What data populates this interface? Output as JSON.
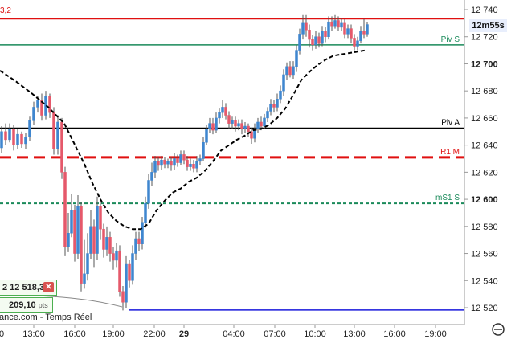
{
  "chart_data": {
    "type": "candlestick",
    "y_ticks": [
      "12 740",
      "12 720",
      "12 700",
      "12 680",
      "12 660",
      "12 640",
      "12 620",
      "12 600",
      "12 580",
      "12 560",
      "12 540",
      "12 520"
    ],
    "y_bold_ticks": [
      "12 700",
      "12 600"
    ],
    "y_values": [
      12740,
      12720,
      12700,
      12680,
      12660,
      12640,
      12620,
      12600,
      12580,
      12560,
      12540,
      12520
    ],
    "ylim": [
      12508,
      12745
    ],
    "x_ticks": [
      "13:00",
      "16:00",
      "19:00",
      "22:00",
      "29",
      "04:00",
      "07:00",
      "10:00",
      "13:00",
      "16:00",
      "19:00"
    ],
    "x_tick_prefix": "0",
    "levels": [
      {
        "name": "",
        "value": 12733.2,
        "color": "#e01010",
        "style": "solid",
        "label": "3,2"
      },
      {
        "name": "Piv S",
        "value": 12714,
        "color": "#1a8a5a",
        "style": "solid"
      },
      {
        "name": "Piv A",
        "value": 12652.5,
        "color": "#000000",
        "style": "solid"
      },
      {
        "name": "R1 M",
        "value": 12631,
        "color": "#e01010",
        "style": "dashed"
      },
      {
        "name": "mS1 S",
        "value": 12597,
        "color": "#1a8a5a",
        "style": "dotted"
      },
      {
        "name": "",
        "value": 12518.3,
        "color": "#1a1adc",
        "style": "solid"
      }
    ]
  },
  "close_value": "2 12 518,3",
  "points_value": "209,10",
  "points_unit": "pts",
  "timer": "12m55s",
  "source": "ance.com - Temps Réel",
  "close_icon": "close-x-icon",
  "scroll_icon": "scroll-arrow-icon",
  "colors": {
    "up": "#3f86cf",
    "down": "#e5596b",
    "ma": "#000000"
  }
}
